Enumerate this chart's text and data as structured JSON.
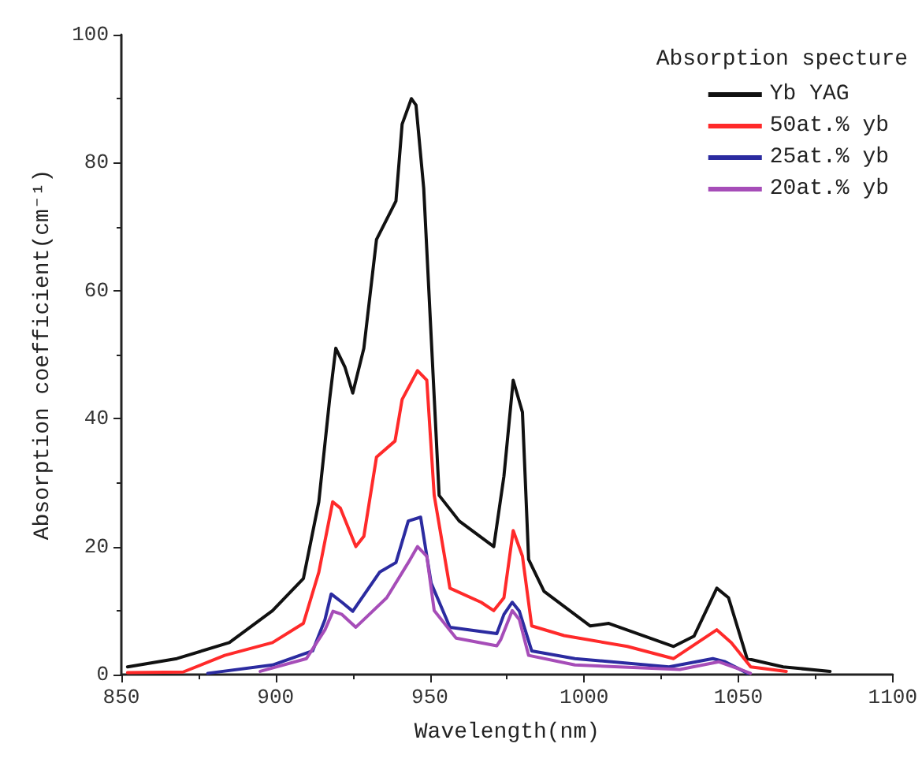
{
  "chart_data": {
    "type": "line",
    "xlabel": "Wavelength(nm)",
    "ylabel": "Absorption coefficient(cm⁻¹)",
    "legend_title": "Absorption specture",
    "legend": "top right",
    "grid": false,
    "marker": "none",
    "line_style": "solid",
    "xlim": [
      850,
      1100
    ],
    "xticks": [
      850,
      900,
      950,
      1000,
      1050,
      1100
    ],
    "ylim": [
      0,
      100
    ],
    "yticks": [
      0,
      20,
      40,
      60,
      80,
      100
    ],
    "series": [
      {
        "name": "Yb YAG",
        "color": "#111111",
        "x": [
          852,
          868,
          885,
          899,
          909,
          914,
          917.5,
          919.5,
          922.5,
          925,
          928.6,
          932.7,
          939,
          941,
          944,
          945.5,
          948,
          953,
          959.5,
          970.7,
          974,
          977,
          980,
          982,
          987,
          1002,
          1008,
          1029,
          1035.6,
          1043,
          1046.8,
          1052.8,
          1064.5,
          1079.7
        ],
        "values": [
          1.2,
          2.5,
          5,
          10,
          15,
          27,
          43,
          51,
          48,
          44,
          51,
          68,
          74,
          86,
          90,
          89,
          76,
          28,
          24,
          20,
          31,
          46,
          41,
          18,
          13,
          7.6,
          8,
          4.4,
          6,
          13.5,
          12,
          2.5,
          1.2,
          0.5
        ]
      },
      {
        "name": "50at.% yb",
        "color": "#ff2a2a",
        "x": [
          852,
          870,
          883.5,
          899,
          909,
          914,
          918.5,
          921,
          926,
          928.6,
          932.7,
          938.7,
          941,
          946,
          949,
          951.4,
          956.5,
          966.6,
          970.7,
          974,
          977,
          980,
          983,
          993.5,
          1014,
          1029,
          1043,
          1047.7,
          1054,
          1065.5
        ],
        "values": [
          0.3,
          0.4,
          3,
          5,
          8,
          16,
          27,
          26,
          20,
          21.6,
          34,
          36.5,
          43,
          47.5,
          46,
          28,
          13.5,
          11.3,
          10,
          12,
          22.5,
          18.5,
          7.6,
          6.1,
          4.4,
          2.5,
          7,
          5,
          1.2,
          0.5
        ]
      },
      {
        "name": "25at.% yb",
        "color": "#2b2ba0",
        "x": [
          878,
          899,
          912,
          916,
          918,
          921.5,
          925,
          933.7,
          939,
          943,
          947,
          950.4,
          956.5,
          971.7,
          974,
          976.7,
          979,
          983,
          997,
          1027.5,
          1041.7,
          1045.7,
          1053
        ],
        "values": [
          0.2,
          1.5,
          3.7,
          8.6,
          12.6,
          11.3,
          9.9,
          16,
          17.5,
          24,
          24.6,
          14.3,
          7.4,
          6.4,
          9.4,
          11.3,
          9.9,
          3.7,
          2.5,
          1.2,
          2.5,
          2,
          0.2
        ]
      },
      {
        "name": "20at.% yb",
        "color": "#a64db8",
        "x": [
          895,
          910,
          916,
          918.6,
          921.5,
          926,
          936,
          943,
          946,
          949,
          951.4,
          958.5,
          971.7,
          973,
          976.7,
          979,
          982,
          997,
          1031,
          1043.7,
          1050.7,
          1053.9
        ],
        "values": [
          0.5,
          2.5,
          7,
          9.9,
          9.4,
          7.4,
          12,
          17.5,
          20,
          18.5,
          10,
          5.7,
          4.5,
          5.5,
          10,
          8.6,
          3,
          1.5,
          0.8,
          2,
          0.8,
          0.2
        ]
      }
    ]
  }
}
